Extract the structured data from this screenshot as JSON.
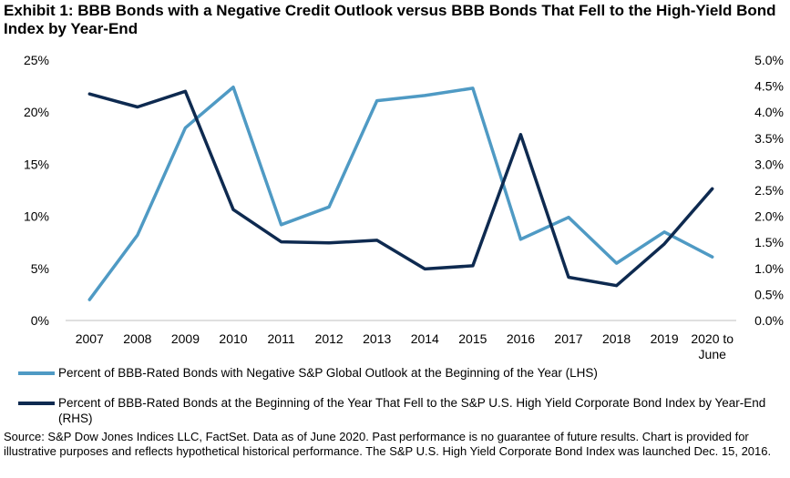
{
  "title": "Exhibit 1: BBB Bonds with a Negative Credit Outlook versus BBB Bonds That Fell to the High-Yield Bond Index by Year-End",
  "chart_data": {
    "type": "line",
    "categories": [
      "2007",
      "2008",
      "2009",
      "2010",
      "2011",
      "2012",
      "2013",
      "2014",
      "2015",
      "2016",
      "2017",
      "2018",
      "2019",
      "2020 to June"
    ],
    "y_left": {
      "ticks": [
        "0%",
        "5%",
        "10%",
        "15%",
        "20%",
        "25%"
      ],
      "ylim": [
        0,
        25
      ]
    },
    "y_right": {
      "ticks": [
        "0.0%",
        "0.5%",
        "1.0%",
        "1.5%",
        "2.0%",
        "2.5%",
        "3.0%",
        "3.5%",
        "4.0%",
        "4.5%",
        "5.0%"
      ],
      "ylim": [
        0,
        5
      ]
    },
    "grid": false,
    "legend_position": "bottom",
    "series": [
      {
        "name": "Percent of BBB-Rated Bonds with Negative S&P Global Outlook at the Beginning of the Year (LHS)",
        "axis": "left",
        "color": "#4f9ac4",
        "values": [
          2.0,
          8.2,
          18.5,
          22.4,
          9.2,
          10.9,
          21.1,
          21.6,
          22.3,
          7.8,
          9.9,
          5.5,
          8.5,
          6.1
        ]
      },
      {
        "name": "Percent of BBB-Rated Bonds at the Beginning of the Year That Fell to the S&P U.S. High Yield Corporate Bond Index by Year-End (RHS)",
        "axis": "right",
        "color": "#0e2a50",
        "values": [
          4.35,
          4.1,
          4.4,
          2.13,
          1.51,
          1.49,
          1.54,
          0.99,
          1.05,
          3.57,
          0.83,
          0.67,
          1.47,
          2.53
        ]
      }
    ]
  },
  "legend": {
    "item1": "Percent of BBB-Rated Bonds with Negative S&P Global Outlook at the Beginning of the Year (LHS)",
    "item2": "Percent of BBB-Rated Bonds at the Beginning of the Year That Fell to the S&P U.S. High Yield Corporate Bond Index by Year-End (RHS)"
  },
  "source": "Source: S&P Dow Jones Indices LLC, FactSet. Data as of June 2020. Past performance is no guarantee of future results. Chart is provided for illustrative purposes and reflects hypothetical historical performance. The S&P U.S. High Yield Corporate Bond Index was launched Dec. 15, 2016."
}
